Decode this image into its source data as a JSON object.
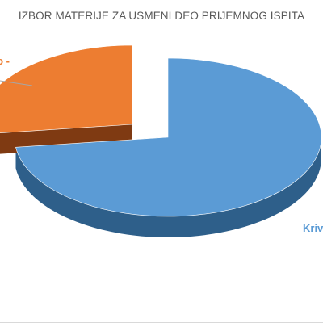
{
  "chart_data": {
    "type": "pie",
    "title": "IZBOR MATERIJE ZA USMENI DEO PRIJEMNOG ISPITA",
    "slices": [
      {
        "label": "Kriv",
        "value": 73,
        "color": "#5b9bd5",
        "side_color": "#2e5f8a"
      },
      {
        "label": "o -",
        "value": 27,
        "color": "#ed7d31",
        "side_color": "#7f3a12"
      }
    ],
    "style": "3d-exploded",
    "legend": "none"
  }
}
